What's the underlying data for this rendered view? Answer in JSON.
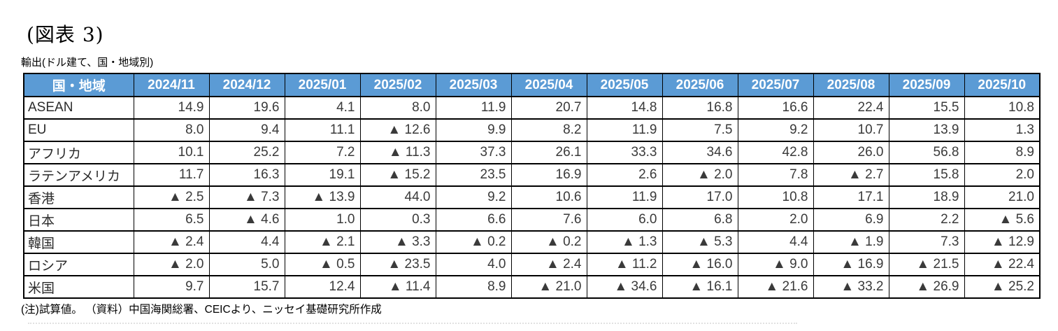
{
  "figure": {
    "title": "(図表 3)",
    "subtitle": "輸出(ドル建て、国・地域別)",
    "note": "(注)試算値。 （資料）中国海関総署、CEICより、ニッセイ基礎研究所作成",
    "negative_marker": "▲"
  },
  "colors": {
    "header_bg": "#5B9BD5",
    "header_text": "#FFFFFF",
    "border": "#000000",
    "cell_text": "#3A3A3A",
    "page_bg": "#FFFFFF"
  },
  "chart_data": {
    "type": "table",
    "title": "輸出(ドル建て、国・地域別)",
    "columns": [
      "国・地域",
      "2024/11",
      "2024/12",
      "2025/01",
      "2025/02",
      "2025/03",
      "2025/04",
      "2025/05",
      "2025/06",
      "2025/07",
      "2025/08",
      "2025/09",
      "2025/10"
    ],
    "rows": [
      {
        "label": "ASEAN",
        "values": [
          "14.9",
          "19.6",
          "4.1",
          "8.0",
          "11.9",
          "20.7",
          "14.8",
          "16.8",
          "16.6",
          "22.4",
          "15.5",
          "10.8"
        ]
      },
      {
        "label": "EU",
        "values": [
          "8.0",
          "9.4",
          "11.1",
          "▲ 12.6",
          "9.9",
          "8.2",
          "11.9",
          "7.5",
          "9.2",
          "10.7",
          "13.9",
          "1.3"
        ]
      },
      {
        "label": "アフリカ",
        "values": [
          "10.1",
          "25.2",
          "7.2",
          "▲ 11.3",
          "37.3",
          "26.1",
          "33.3",
          "34.6",
          "42.8",
          "26.0",
          "56.8",
          "8.9"
        ]
      },
      {
        "label": "ラテンアメリカ",
        "values": [
          "11.7",
          "16.3",
          "19.1",
          "▲ 15.2",
          "23.5",
          "16.9",
          "2.6",
          "▲ 2.0",
          "7.8",
          "▲ 2.7",
          "15.8",
          "2.0"
        ]
      },
      {
        "label": "香港",
        "values": [
          "▲ 2.5",
          "▲ 7.3",
          "▲ 13.9",
          "44.0",
          "9.2",
          "10.6",
          "11.9",
          "17.0",
          "10.8",
          "17.1",
          "18.9",
          "21.0"
        ]
      },
      {
        "label": "日本",
        "values": [
          "6.5",
          "▲ 4.6",
          "1.0",
          "0.3",
          "6.6",
          "7.6",
          "6.0",
          "6.8",
          "2.0",
          "6.9",
          "2.2",
          "▲ 5.6"
        ]
      },
      {
        "label": "韓国",
        "values": [
          "▲ 2.4",
          "4.4",
          "▲ 2.1",
          "▲ 3.3",
          "▲ 0.2",
          "▲ 0.2",
          "▲ 1.3",
          "▲ 5.3",
          "4.4",
          "▲ 1.9",
          "7.3",
          "▲ 12.9"
        ]
      },
      {
        "label": "ロシア",
        "values": [
          "▲ 2.0",
          "5.0",
          "▲ 0.5",
          "▲ 23.5",
          "4.0",
          "▲ 2.4",
          "▲ 11.2",
          "▲ 16.0",
          "▲ 9.0",
          "▲ 16.9",
          "▲ 21.5",
          "▲ 22.4"
        ]
      },
      {
        "label": "米国",
        "values": [
          "9.7",
          "15.7",
          "12.4",
          "▲ 11.4",
          "8.9",
          "▲ 21.0",
          "▲ 34.6",
          "▲ 16.1",
          "▲ 21.6",
          "▲ 33.2",
          "▲ 26.9",
          "▲ 25.2"
        ]
      }
    ]
  }
}
